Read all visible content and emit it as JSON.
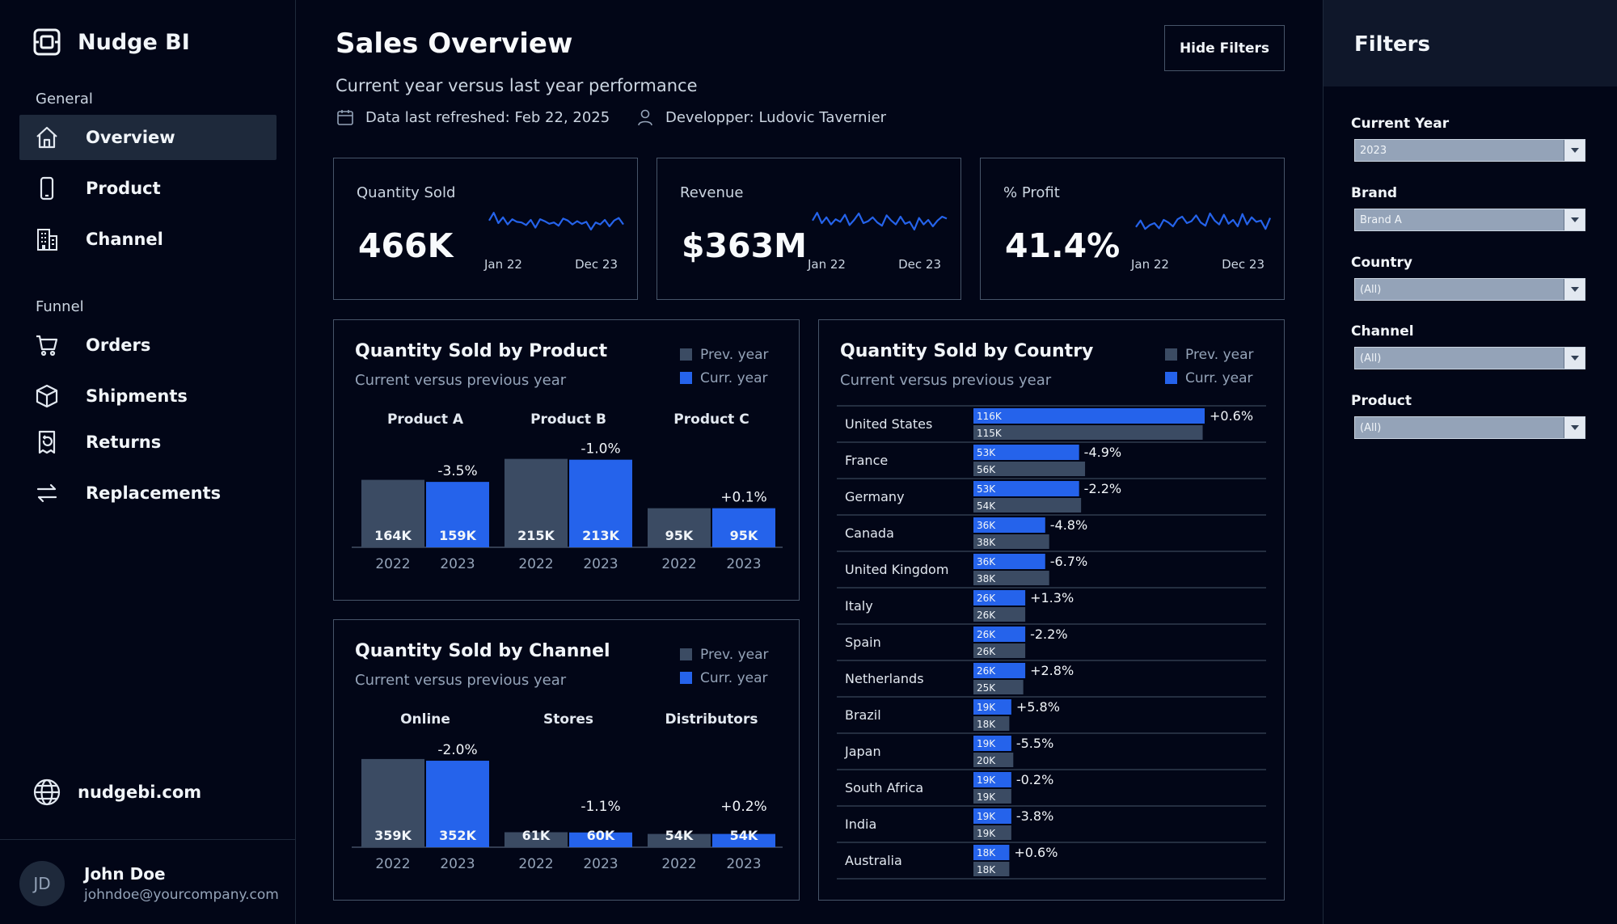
{
  "app": {
    "name": "Nudge BI"
  },
  "sidebar": {
    "sections": [
      {
        "label": "General",
        "items": [
          {
            "label": "Overview",
            "icon": "home-icon",
            "active": true
          },
          {
            "label": "Product",
            "icon": "smartphone-icon"
          },
          {
            "label": "Channel",
            "icon": "building-icon"
          }
        ]
      },
      {
        "label": "Funnel",
        "items": [
          {
            "label": "Orders",
            "icon": "cart-icon"
          },
          {
            "label": "Shipments",
            "icon": "box-icon"
          },
          {
            "label": "Returns",
            "icon": "return-receipt-icon"
          },
          {
            "label": "Replacements",
            "icon": "swap-arrows-icon"
          }
        ]
      }
    ],
    "site": {
      "label": "nudgebi.com",
      "icon": "globe-icon"
    },
    "user": {
      "initials": "JD",
      "name": "John Doe",
      "email": "johndoe@yourcompany.com"
    }
  },
  "header": {
    "title": "Sales Overview",
    "subtitle": "Current year versus last year performance",
    "refreshed": "Data last refreshed: Feb 22, 2025",
    "developer": "Developper: Ludovic Tavernier",
    "hide_filters_label": "Hide Filters"
  },
  "kpis": [
    {
      "label": "Quantity Sold",
      "value": "466K",
      "spark_start": "Jan 22",
      "spark_end": "Dec 23",
      "spark": [
        44,
        56,
        40,
        49,
        38,
        46,
        42,
        41,
        37,
        45,
        33,
        46,
        43,
        39,
        41,
        36,
        47,
        44,
        38,
        43,
        39,
        42,
        30,
        41,
        38,
        45,
        35,
        44,
        48,
        38
      ]
    },
    {
      "label": "Revenue",
      "value": "$363M",
      "spark_start": "Jan 22",
      "spark_end": "Dec 23",
      "spark": [
        44,
        56,
        40,
        49,
        38,
        46,
        42,
        53,
        37,
        45,
        55,
        40,
        43,
        49,
        41,
        36,
        52,
        44,
        38,
        50,
        39,
        42,
        30,
        48,
        38,
        45,
        35,
        44,
        50,
        47
      ]
    },
    {
      "label": "% Profit",
      "value": "41.4%",
      "spark_start": "Jan 22",
      "spark_end": "Dec 23",
      "spark": [
        34,
        44,
        31,
        37,
        40,
        32,
        45,
        41,
        35,
        46,
        50,
        40,
        43,
        52,
        41,
        36,
        55,
        44,
        38,
        53,
        39,
        45,
        35,
        54,
        38,
        49,
        42,
        44,
        31,
        48
      ]
    }
  ],
  "legend": {
    "prev": "Prev. year",
    "curr": "Curr. year"
  },
  "colors": {
    "prev": "#3b4b63",
    "curr": "#2563eb",
    "text": "#e2e8f0"
  },
  "product_chart": {
    "title": "Quantity Sold by Product",
    "subtitle": "Current versus previous year",
    "chart_data": {
      "type": "bar",
      "groups": [
        {
          "name": "Product A",
          "prev": 164,
          "curr": 159,
          "prev_label": "164K",
          "curr_label": "159K",
          "delta": "-3.5%"
        },
        {
          "name": "Product B",
          "prev": 215,
          "curr": 213,
          "prev_label": "215K",
          "curr_label": "213K",
          "delta": "-1.0%"
        },
        {
          "name": "Product C",
          "prev": 95,
          "curr": 95,
          "prev_label": "95K",
          "curr_label": "95K",
          "delta": "+0.1%"
        }
      ],
      "x_labels": [
        "2022",
        "2023"
      ],
      "ymax": 230
    }
  },
  "channel_chart": {
    "title": "Quantity Sold by Channel",
    "subtitle": "Current versus previous year",
    "chart_data": {
      "type": "bar",
      "groups": [
        {
          "name": "Online",
          "prev": 359,
          "curr": 352,
          "prev_label": "359K",
          "curr_label": "352K",
          "delta": "-2.0%"
        },
        {
          "name": "Stores",
          "prev": 61,
          "curr": 60,
          "prev_label": "61K",
          "curr_label": "60K",
          "delta": "-1.1%"
        },
        {
          "name": "Distributors",
          "prev": 54,
          "curr": 54,
          "prev_label": "54K",
          "curr_label": "54K",
          "delta": "+0.2%"
        }
      ],
      "x_labels": [
        "2022",
        "2023"
      ],
      "ymax": 385
    }
  },
  "country_chart": {
    "title": "Quantity Sold by Country",
    "subtitle": "Current versus previous year",
    "chart_data": {
      "type": "bar",
      "orientation": "horizontal",
      "xmax": 116,
      "rows": [
        {
          "country": "United States",
          "curr": 116,
          "prev": 115,
          "curr_label": "116K",
          "prev_label": "115K",
          "delta": "+0.6%"
        },
        {
          "country": "France",
          "curr": 53,
          "prev": 56,
          "curr_label": "53K",
          "prev_label": "56K",
          "delta": "-4.9%"
        },
        {
          "country": "Germany",
          "curr": 53,
          "prev": 54,
          "curr_label": "53K",
          "prev_label": "54K",
          "delta": "-2.2%"
        },
        {
          "country": "Canada",
          "curr": 36,
          "prev": 38,
          "curr_label": "36K",
          "prev_label": "38K",
          "delta": "-4.8%"
        },
        {
          "country": "United Kingdom",
          "curr": 36,
          "prev": 38,
          "curr_label": "36K",
          "prev_label": "38K",
          "delta": "-6.7%"
        },
        {
          "country": "Italy",
          "curr": 26,
          "prev": 26,
          "curr_label": "26K",
          "prev_label": "26K",
          "delta": "+1.3%"
        },
        {
          "country": "Spain",
          "curr": 26,
          "prev": 26,
          "curr_label": "26K",
          "prev_label": "26K",
          "delta": "-2.2%"
        },
        {
          "country": "Netherlands",
          "curr": 26,
          "prev": 25,
          "curr_label": "26K",
          "prev_label": "25K",
          "delta": "+2.8%"
        },
        {
          "country": "Brazil",
          "curr": 19,
          "prev": 18,
          "curr_label": "19K",
          "prev_label": "18K",
          "delta": "+5.8%"
        },
        {
          "country": "Japan",
          "curr": 19,
          "prev": 20,
          "curr_label": "19K",
          "prev_label": "20K",
          "delta": "-5.5%"
        },
        {
          "country": "South Africa",
          "curr": 19,
          "prev": 19,
          "curr_label": "19K",
          "prev_label": "19K",
          "delta": "-0.2%"
        },
        {
          "country": "India",
          "curr": 19,
          "prev": 19,
          "curr_label": "19K",
          "prev_label": "19K",
          "delta": "-3.8%"
        },
        {
          "country": "Australia",
          "curr": 18,
          "prev": 18,
          "curr_label": "18K",
          "prev_label": "18K",
          "delta": "+0.6%"
        }
      ]
    }
  },
  "filters": {
    "title": "Filters",
    "items": [
      {
        "label": "Current Year",
        "value": "2023"
      },
      {
        "label": "Brand",
        "value": "Brand A"
      },
      {
        "label": "Country",
        "value": "(All)"
      },
      {
        "label": "Channel",
        "value": "(All)"
      },
      {
        "label": "Product",
        "value": "(All)"
      }
    ]
  }
}
